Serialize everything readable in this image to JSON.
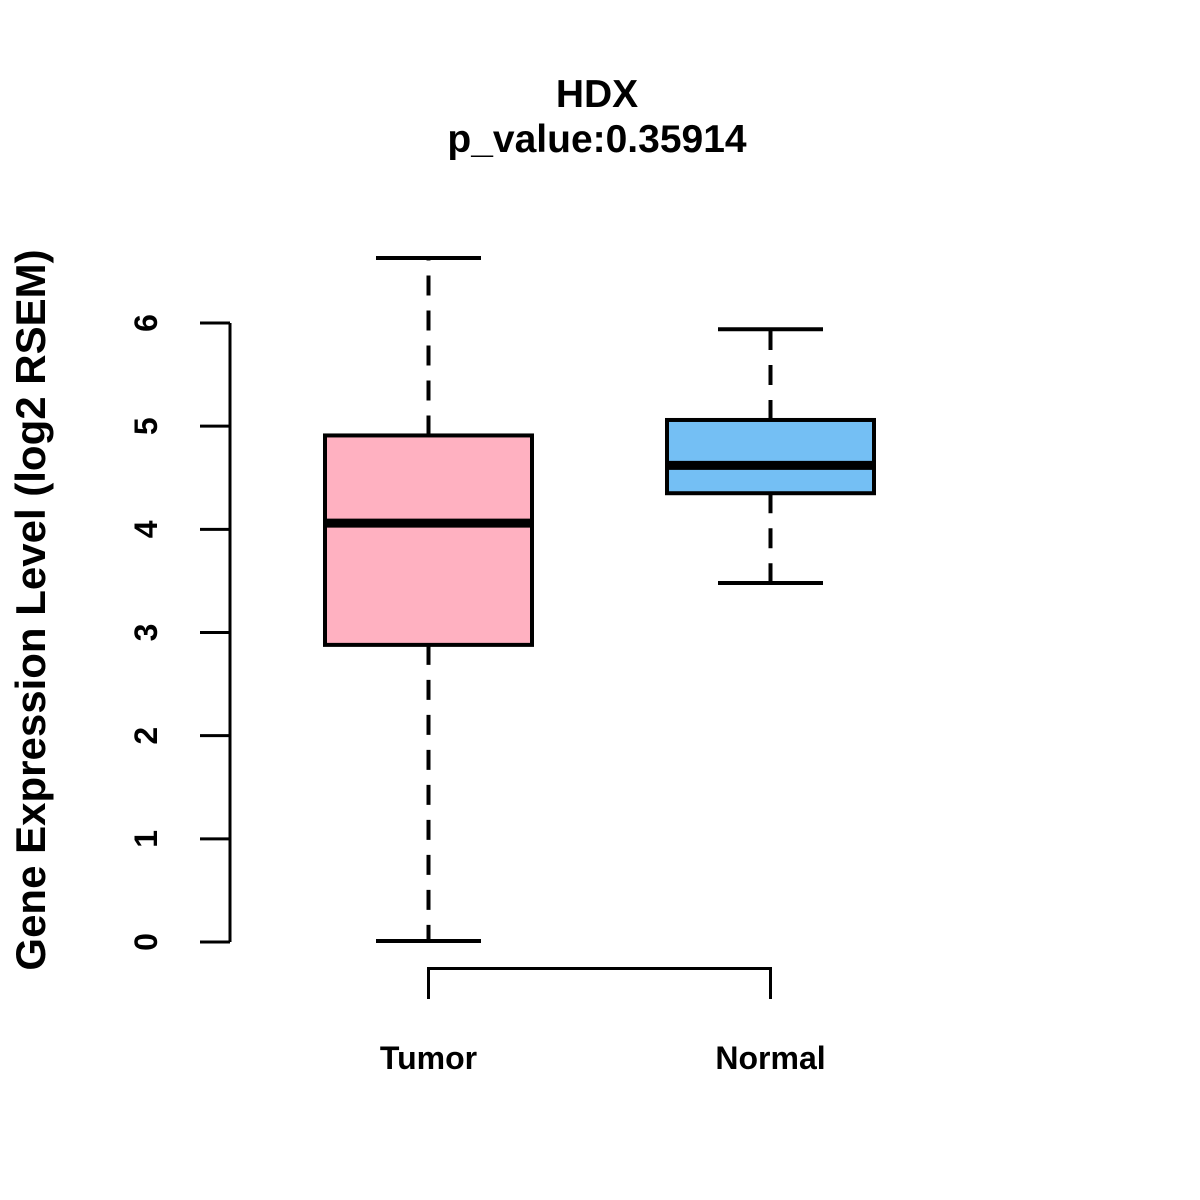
{
  "chart_data": {
    "type": "boxplot",
    "title": "HDX",
    "subtitle": "p_value:0.35914",
    "ylabel": "Gene Expression Level (log2 RSEM)",
    "xlabel": "",
    "categories": [
      "Tumor",
      "Normal"
    ],
    "ylim": [
      0,
      6
    ],
    "yticks": [
      0,
      1,
      2,
      3,
      4,
      5,
      6
    ],
    "grid": false,
    "legend": "none",
    "background_color": "#FFFFFF",
    "stroke_color": "#000000",
    "series": [
      {
        "name": "Tumor",
        "lower_whisker": 0.01,
        "q1": 2.88,
        "median": 4.06,
        "q3": 4.91,
        "upper_whisker": 6.63,
        "fill_color": "#FFB1C1"
      },
      {
        "name": "Normal",
        "lower_whisker": 3.48,
        "q1": 4.35,
        "median": 4.62,
        "q3": 5.06,
        "upper_whisker": 5.94,
        "fill_color": "#74BFF4"
      }
    ]
  }
}
